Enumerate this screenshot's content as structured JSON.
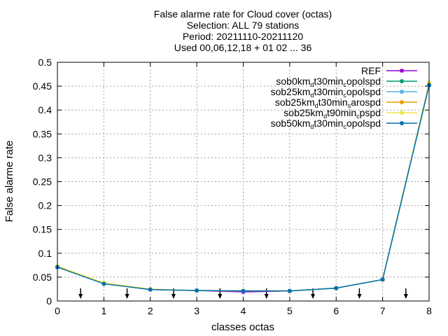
{
  "chart_data": {
    "type": "line",
    "title_lines": [
      "False alarme rate  for Cloud cover (octas)",
      "Selection: ALL     79 stations",
      "Period: 20211110-20211120",
      "Used 00,06,12,18 + 01 02 ... 36"
    ],
    "xlabel": "classes octas",
    "ylabel": "False alarme rate",
    "xlim": [
      0,
      8
    ],
    "ylim": [
      0,
      0.5
    ],
    "x_ticks": [
      "0",
      "1",
      "2",
      "3",
      "4",
      "5",
      "6",
      "7",
      "8"
    ],
    "y_ticks": [
      "0",
      "0.05",
      "0.1",
      "0.15",
      "0.2",
      "0.25",
      "0.3",
      "0.35",
      "0.4",
      "0.45",
      "0.5"
    ],
    "grid": true,
    "legend_position": "top-right",
    "x": [
      0,
      1,
      2,
      3,
      4,
      5,
      6,
      7,
      8
    ],
    "series": [
      {
        "name": "REF",
        "name_parts": [
          [
            "REF",
            ""
          ]
        ],
        "color": "#9400d3",
        "marker": "square",
        "values": [
          0.071,
          0.037,
          0.024,
          0.022,
          0.019,
          0.021,
          0.027,
          0.045,
          0.452
        ]
      },
      {
        "name": "sob0km_d t30min_c opolspd",
        "name_parts": [
          [
            "sob0km",
            ""
          ],
          [
            "d",
            "sub"
          ],
          [
            "t30min",
            ""
          ],
          [
            "c",
            "sub"
          ],
          [
            "opolspd",
            ""
          ]
        ],
        "color": "#009e73",
        "marker": "circle",
        "values": [
          0.071,
          0.037,
          0.024,
          0.022,
          0.021,
          0.021,
          0.027,
          0.045,
          0.452
        ]
      },
      {
        "name": "sob25km_d t30min_c opolspd",
        "name_parts": [
          [
            "sob25km",
            ""
          ],
          [
            "d",
            "sub"
          ],
          [
            "t30min",
            ""
          ],
          [
            "c",
            "sub"
          ],
          [
            "opolspd",
            ""
          ]
        ],
        "color": "#56b4e9",
        "marker": "circle",
        "values": [
          0.071,
          0.037,
          0.024,
          0.022,
          0.021,
          0.021,
          0.027,
          0.045,
          0.452
        ]
      },
      {
        "name": "sob25km_d t30min_s arospd",
        "name_parts": [
          [
            "sob25km",
            ""
          ],
          [
            "d",
            "sub"
          ],
          [
            "t30min",
            ""
          ],
          [
            "s",
            "sub"
          ],
          [
            "arospd",
            ""
          ]
        ],
        "color": "#e69f00",
        "marker": "circle",
        "values": [
          0.072,
          0.037,
          0.024,
          0.022,
          0.021,
          0.021,
          0.027,
          0.045,
          0.455
        ]
      },
      {
        "name": "sob25km_d t90min_c pspd",
        "name_parts": [
          [
            "sob25km",
            ""
          ],
          [
            "d",
            "sub"
          ],
          [
            "t90min",
            ""
          ],
          [
            "c",
            "sub"
          ],
          [
            "pspd",
            ""
          ]
        ],
        "color": "#f0e442",
        "marker": "circle",
        "values": [
          0.073,
          0.038,
          0.025,
          0.022,
          0.021,
          0.021,
          0.027,
          0.045,
          0.457
        ]
      },
      {
        "name": "sob50km_d t30min_c opolspd",
        "name_parts": [
          [
            "sob50km",
            ""
          ],
          [
            "d",
            "sub"
          ],
          [
            "t30min",
            ""
          ],
          [
            "c",
            "sub"
          ],
          [
            "opolspd",
            ""
          ]
        ],
        "color": "#0072b2",
        "marker": "circle",
        "values": [
          0.071,
          0.036,
          0.024,
          0.022,
          0.021,
          0.021,
          0.027,
          0.045,
          0.452
        ]
      }
    ],
    "annotation_arrows_x": [
      0.5,
      1.5,
      2.5,
      3.5,
      4.5,
      5.5,
      6.5,
      7.5
    ]
  }
}
